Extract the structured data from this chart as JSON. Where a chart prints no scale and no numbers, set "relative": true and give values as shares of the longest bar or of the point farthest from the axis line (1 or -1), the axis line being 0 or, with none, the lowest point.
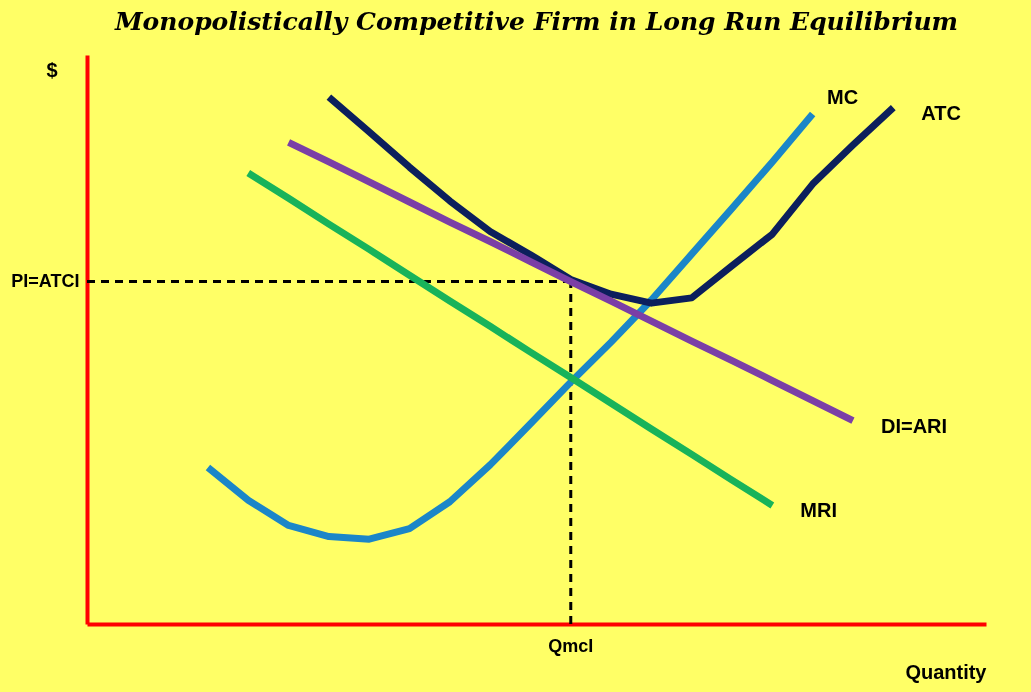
{
  "chart_data": {
    "type": "line",
    "relative": true,
    "title": "Monopolistically Competitive Firm in Long Run Equilibrium",
    "xlabel": "Quantity",
    "ylabel": "$",
    "line_style": "solid",
    "categories": [
      null,
      null,
      null,
      null,
      null,
      null,
      null,
      null,
      null,
      null,
      null,
      null,
      null,
      null,
      null,
      null,
      null,
      null,
      null,
      null,
      null
    ],
    "annotations": [
      "QmcI"
    ],
    "series": [
      {
        "name": "MC",
        "color": "#1b86c8",
        "values": [
          null,
          null,
          0.297,
          0.235,
          0.187,
          0.166,
          0.161,
          0.181,
          0.232,
          0.302,
          0.38,
          0.459,
          0.535,
          0.615,
          0.702,
          0.789,
          0.877,
          0.968,
          null,
          null,
          null
        ]
      },
      {
        "name": "ATC",
        "color": "#0c1f5c",
        "values": [
          null,
          null,
          null,
          null,
          null,
          1.0,
          0.934,
          0.867,
          0.803,
          0.745,
          0.701,
          0.654,
          0.626,
          0.609,
          0.619,
          0.68,
          0.74,
          0.835,
          0.909,
          0.98,
          null
        ]
      },
      {
        "name": "DI=ARI",
        "color": "#7b3fa6",
        "values": [
          null,
          null,
          null,
          null,
          0.914,
          0.877,
          0.839,
          0.801,
          0.763,
          0.726,
          0.688,
          0.65,
          0.613,
          0.575,
          0.537,
          0.5,
          0.462,
          0.424,
          0.386,
          null,
          null
        ]
      },
      {
        "name": "MRI",
        "color": "#18b35a",
        "values": [
          null,
          null,
          null,
          0.856,
          0.808,
          0.759,
          0.711,
          0.662,
          0.613,
          0.565,
          0.516,
          0.468,
          0.419,
          0.37,
          0.322,
          0.273,
          0.225,
          null,
          null,
          null,
          null
        ]
      }
    ],
    "ref_lines": [
      {
        "axis": "y",
        "value": 0.65,
        "label": "PI=ATCI",
        "color": "#000000",
        "line_style": "dashed"
      }
    ]
  }
}
